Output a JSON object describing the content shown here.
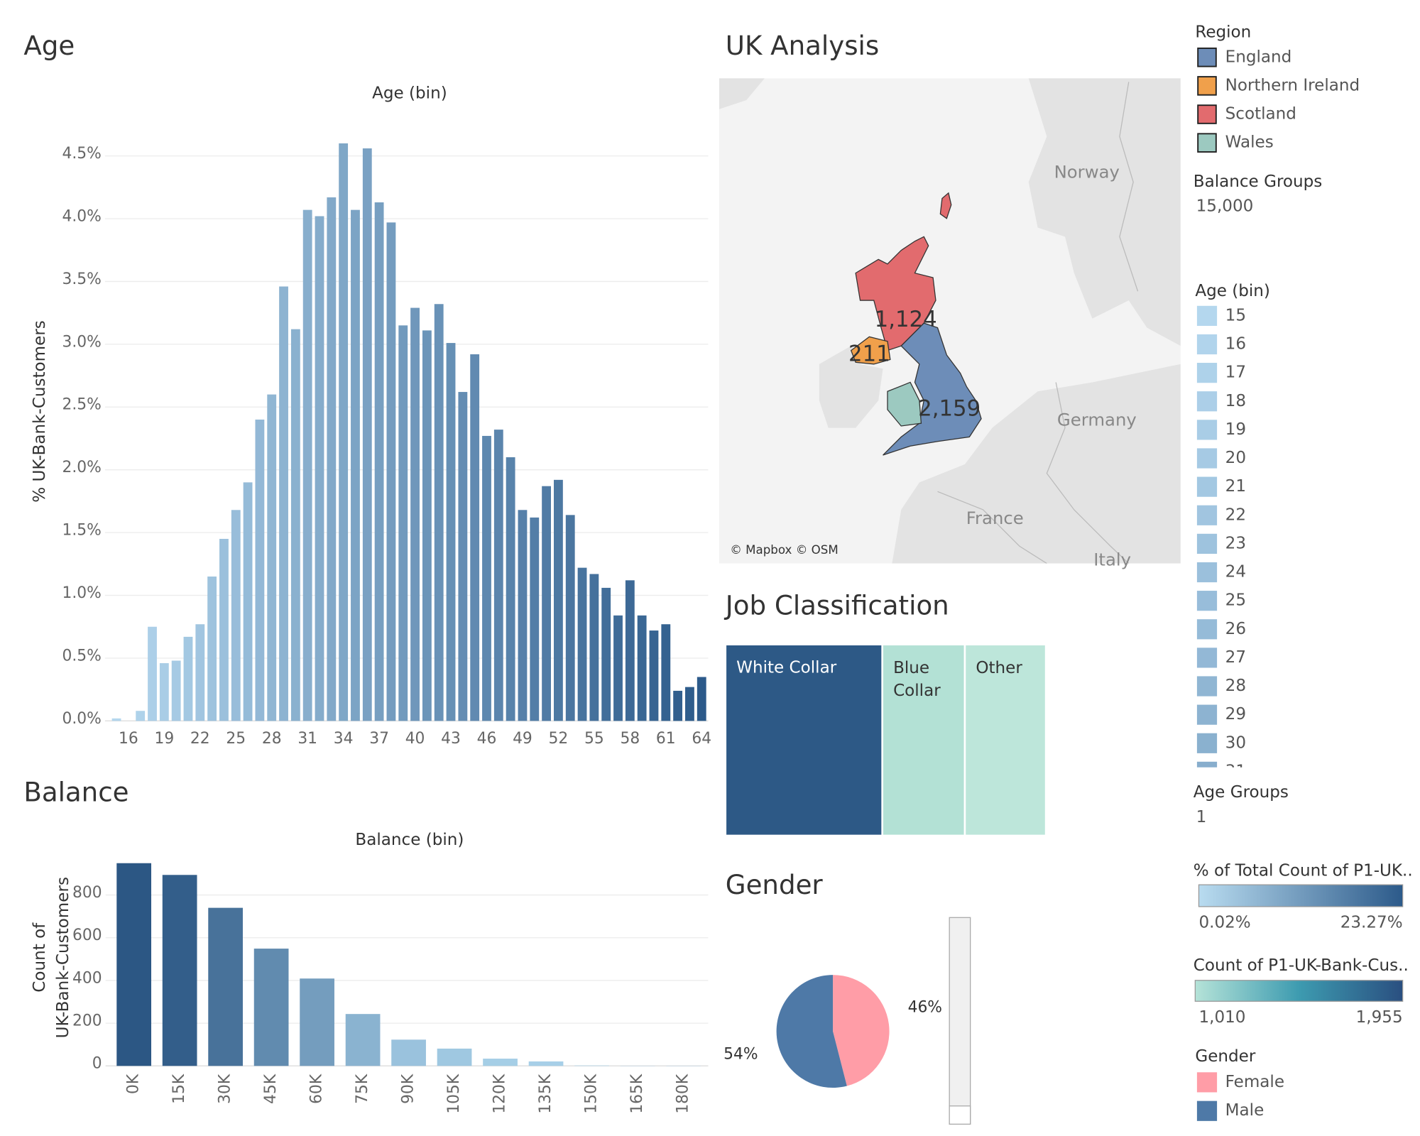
{
  "chart_data": [
    {
      "type": "bar",
      "title": "Age",
      "axis_title": "Age (bin)",
      "y_label": "% UK-Bank-Customers",
      "categories": [
        15,
        16,
        17,
        18,
        19,
        20,
        21,
        22,
        23,
        24,
        25,
        26,
        27,
        28,
        29,
        30,
        31,
        32,
        33,
        34,
        35,
        36,
        37,
        38,
        39,
        40,
        41,
        42,
        43,
        44,
        45,
        46,
        47,
        48,
        49,
        50,
        51,
        52,
        53,
        54,
        55,
        56,
        57,
        58,
        59,
        60,
        61,
        62,
        63,
        64
      ],
      "values": [
        0.02,
        0,
        0.08,
        0.75,
        0.46,
        0.48,
        0.67,
        0.77,
        1.15,
        1.45,
        1.68,
        1.9,
        2.4,
        2.6,
        3.46,
        3.12,
        4.07,
        4.02,
        4.17,
        4.6,
        4.07,
        4.56,
        4.13,
        3.97,
        3.15,
        3.29,
        3.11,
        3.32,
        3.01,
        2.62,
        2.92,
        2.27,
        2.32,
        2.1,
        1.68,
        1.62,
        1.87,
        1.92,
        1.64,
        1.22,
        1.17,
        1.06,
        0.84,
        1.12,
        0.84,
        0.72,
        0.77,
        0.24,
        0.27,
        0.35
      ],
      "color_range": [
        "#b4d7ee",
        "#2c5a8a"
      ],
      "ylim": [
        0,
        4.85
      ],
      "yticks": [
        {
          "value": 0,
          "label": "0.0%"
        },
        {
          "value": 0.5,
          "label": "0.5%"
        },
        {
          "value": 1,
          "label": "1.0%"
        },
        {
          "value": 1.5,
          "label": "1.5%"
        },
        {
          "value": 2,
          "label": "2.0%"
        },
        {
          "value": 2.5,
          "label": "2.5%"
        },
        {
          "value": 3,
          "label": "3.0%"
        },
        {
          "value": 3.5,
          "label": "3.5%"
        },
        {
          "value": 4,
          "label": "4.0%"
        },
        {
          "value": 4.5,
          "label": "4.5%"
        }
      ],
      "grid": true
    },
    {
      "type": "bar",
      "title": "Balance",
      "axis_title": "Balance (bin)",
      "y_label": [
        "Count of",
        "UK-Bank-Customers"
      ],
      "categories": [
        "0K",
        "15K",
        "30K",
        "45K",
        "60K",
        "75K",
        "90K",
        "105K",
        "120K",
        "135K",
        "150K",
        "165K",
        "180K"
      ],
      "values": [
        949,
        894,
        740,
        549,
        409,
        243,
        123,
        81,
        34,
        21,
        2,
        1,
        1
      ],
      "color_range": [
        "#aad2ea",
        "#2c5784"
      ],
      "ylim": [
        0,
        980
      ],
      "yticks": [
        0,
        200,
        400,
        600,
        800
      ],
      "grid": true
    },
    {
      "type": "treemap",
      "title": "Job Classification",
      "categories": [
        "White Collar",
        "Blue Collar",
        "Other"
      ],
      "values": [
        1955,
        1029,
        1010
      ],
      "colors": [
        "#2d5986",
        "#b3e1d5",
        "#bde6da"
      ]
    },
    {
      "type": "pie",
      "title": "Gender",
      "categories": [
        "Female",
        "Male"
      ],
      "values": [
        46,
        54
      ],
      "value_labels": [
        "46%",
        "54%"
      ],
      "colors": [
        "#ff9da7",
        "#4e79a7"
      ]
    }
  ],
  "map": {
    "title": "UK Analysis",
    "attribution": "© Mapbox © OSM",
    "places": [
      "Norway",
      "Germany",
      "France",
      "Italy"
    ],
    "regions": [
      {
        "name": "England",
        "color": "#6d8db8",
        "value": 2159,
        "value_label": "2,159"
      },
      {
        "name": "Northern Ireland",
        "color": "#f0a04b",
        "value": 211,
        "value_label": "211"
      },
      {
        "name": "Scotland",
        "color": "#e26b6e",
        "value": 1124,
        "value_label": "1,124"
      },
      {
        "name": "Wales",
        "color": "#9cc9c0"
      }
    ]
  },
  "legends": {
    "region_title": "Region",
    "balance_groups_title": "Balance Groups",
    "balance_groups_value": "15,000",
    "age_title": "Age (bin)",
    "age_groups_title": "Age Groups",
    "age_groups_value": "1",
    "pct_title": "% of Total Count of P1-UK..",
    "pct_min": "0.02%",
    "pct_max": "23.27%",
    "count_title": "Count of P1-UK-Bank-Cus..",
    "count_min": "1,010",
    "count_max": "1,955",
    "gender_title": "Gender"
  }
}
